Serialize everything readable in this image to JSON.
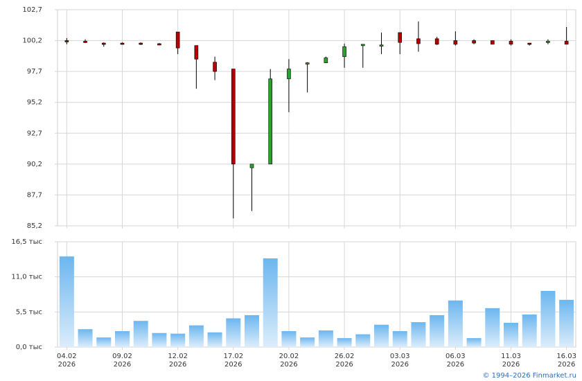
{
  "chart_data": [
    {
      "type": "candlestick",
      "up_color": "#2ca02c",
      "down_color": "#b30000",
      "open": [
        100.2,
        100.15,
        100.0,
        100.0,
        100.0,
        99.95,
        100.9,
        99.8,
        98.45,
        97.9,
        89.9,
        90.2,
        97.1,
        98.35,
        98.4,
        98.9,
        99.85,
        99.8,
        100.85,
        100.35,
        100.35,
        100.2,
        100.2,
        100.2,
        100.15,
        100.0,
        100.1,
        100.15
      ],
      "high": [
        100.4,
        100.3,
        100.05,
        100.05,
        100.05,
        100.0,
        100.9,
        99.8,
        98.9,
        97.9,
        90.2,
        97.9,
        98.7,
        98.45,
        98.9,
        99.95,
        99.9,
        100.85,
        100.85,
        101.75,
        100.5,
        100.95,
        100.3,
        100.2,
        100.3,
        100.0,
        100.3,
        101.3
      ],
      "low": [
        99.9,
        100.0,
        99.7,
        99.9,
        99.85,
        99.85,
        99.1,
        96.3,
        97.0,
        85.8,
        86.4,
        90.2,
        94.4,
        96.0,
        98.4,
        98.0,
        98.0,
        99.1,
        99.1,
        99.3,
        99.85,
        99.8,
        99.9,
        99.9,
        99.8,
        99.8,
        99.9,
        99.9
      ],
      "close": [
        100.15,
        100.1,
        99.95,
        99.95,
        99.95,
        99.9,
        99.6,
        98.7,
        97.7,
        90.2,
        90.2,
        97.1,
        97.9,
        98.4,
        98.8,
        99.7,
        99.9,
        99.85,
        100.05,
        99.95,
        99.9,
        99.9,
        100.0,
        99.9,
        99.9,
        99.9,
        100.15,
        99.9
      ],
      "ylim": [
        85.2,
        102.7
      ],
      "yticks": [
        {
          "value": 85.2,
          "label": "85,2"
        },
        {
          "value": 87.7,
          "label": "87,7"
        },
        {
          "value": 90.2,
          "label": "90,2"
        },
        {
          "value": 92.7,
          "label": "92,7"
        },
        {
          "value": 95.2,
          "label": "95,2"
        },
        {
          "value": 97.7,
          "label": "97,7"
        },
        {
          "value": 100.2,
          "label": "100,2"
        },
        {
          "value": 102.7,
          "label": "102,7"
        }
      ],
      "grid": true
    },
    {
      "type": "bar",
      "categories": [
        [
          "04.02",
          "2026"
        ],
        null,
        null,
        [
          "09.02",
          "2026"
        ],
        null,
        null,
        [
          "12.02",
          "2026"
        ],
        null,
        null,
        [
          "17.02",
          "2026"
        ],
        null,
        null,
        [
          "20.02",
          "2026"
        ],
        null,
        null,
        [
          "26.02",
          "2026"
        ],
        null,
        null,
        [
          "03.03",
          "2026"
        ],
        null,
        null,
        [
          "06.03",
          "2026"
        ],
        null,
        null,
        [
          "11.03",
          "2026"
        ],
        null,
        null,
        [
          "16.03",
          "2026"
        ]
      ],
      "values": [
        14.2,
        2.8,
        1.5,
        2.5,
        4.1,
        2.2,
        2.1,
        3.4,
        2.3,
        4.5,
        5.0,
        13.9,
        2.5,
        1.5,
        2.6,
        1.4,
        2.0,
        3.5,
        2.5,
        3.9,
        5.0,
        7.3,
        1.4,
        6.1,
        3.8,
        5.1,
        8.8,
        7.4
      ],
      "color": "#6cb6ef",
      "ylim": [
        0,
        16.5
      ],
      "yticks": [
        {
          "value": 0,
          "label": "0,0 тыс"
        },
        {
          "value": 5.5,
          "label": "5,5 тыс"
        },
        {
          "value": 11.0,
          "label": "11,0 тыс"
        },
        {
          "value": 16.5,
          "label": "16,5 тыс"
        }
      ],
      "grid": true
    }
  ],
  "copyright": "© 1994–2026 Finmarket.ru"
}
